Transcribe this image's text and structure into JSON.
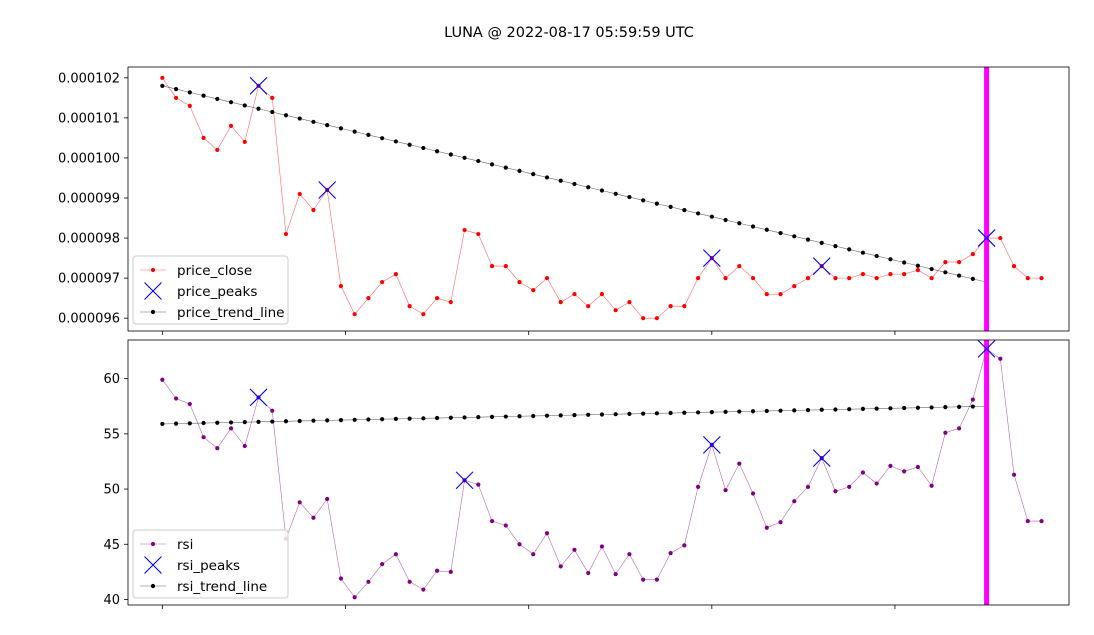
{
  "title": "LUNA @ 2022-08-17 05:59:59 UTC",
  "colors": {
    "price": "#ff0000",
    "rsi": "#800080",
    "trend": "#000000",
    "peaks": "#0000ff",
    "vline": "#ff00ff"
  },
  "chart_data": [
    {
      "type": "line",
      "x": [
        0,
        1,
        2,
        3,
        4,
        5,
        6,
        7,
        8,
        9,
        10,
        11,
        12,
        13,
        14,
        15,
        16,
        17,
        18,
        19,
        20,
        21,
        22,
        23,
        24,
        25,
        26,
        27,
        28,
        29,
        30,
        31,
        32,
        33,
        34,
        35,
        36,
        37,
        38,
        39,
        40,
        41,
        42,
        43,
        44,
        45,
        46,
        47,
        48,
        49,
        50,
        51,
        52,
        53,
        54,
        55,
        56,
        57,
        58,
        59,
        60,
        61,
        62,
        63,
        64
      ],
      "yticks": [
        "0.000096",
        "0.000097",
        "0.000098",
        "0.000099",
        "0.000100",
        "0.000101",
        "0.000102"
      ],
      "ylim": [
        9.568e-05,
        0.00010227
      ],
      "vline_x": 60,
      "legend": {
        "placement": "lower-left",
        "entries": [
          "price_close",
          "price_peaks",
          "price_trend_line"
        ]
      },
      "series": [
        {
          "name": "price_close",
          "values": [
            0.000102,
            0.0001015,
            0.0001013,
            0.0001005,
            0.0001002,
            0.0001008,
            0.0001004,
            0.0001018,
            0.0001015,
            9.81e-05,
            9.91e-05,
            9.87e-05,
            9.92e-05,
            9.68e-05,
            9.61e-05,
            9.65e-05,
            9.69e-05,
            9.71e-05,
            9.63e-05,
            9.61e-05,
            9.65e-05,
            9.64e-05,
            9.82e-05,
            9.81e-05,
            9.73e-05,
            9.73e-05,
            9.69e-05,
            9.67e-05,
            9.7e-05,
            9.64e-05,
            9.66e-05,
            9.63e-05,
            9.66e-05,
            9.62e-05,
            9.64e-05,
            9.6e-05,
            9.6e-05,
            9.63e-05,
            9.63e-05,
            9.7e-05,
            9.75e-05,
            9.7e-05,
            9.73e-05,
            9.7e-05,
            9.66e-05,
            9.66e-05,
            9.68e-05,
            9.7e-05,
            9.73e-05,
            9.7e-05,
            9.7e-05,
            9.71e-05,
            9.7e-05,
            9.71e-05,
            9.71e-05,
            9.72e-05,
            9.7e-05,
            9.74e-05,
            9.74e-05,
            9.76e-05,
            9.8e-05,
            9.8e-05,
            9.73e-05,
            9.7e-05,
            9.7e-05
          ]
        },
        {
          "name": "price_peaks",
          "points": [
            [
              7,
              0.0001018
            ],
            [
              12,
              9.92e-05
            ],
            [
              40,
              9.75e-05
            ],
            [
              48,
              9.73e-05
            ],
            [
              60,
              9.8e-05
            ]
          ]
        },
        {
          "name": "price_trend_line",
          "start": [
            0,
            0.0001018
          ],
          "end": [
            60,
            9.69e-05
          ]
        }
      ]
    },
    {
      "type": "line",
      "x": [
        0,
        1,
        2,
        3,
        4,
        5,
        6,
        7,
        8,
        9,
        10,
        11,
        12,
        13,
        14,
        15,
        16,
        17,
        18,
        19,
        20,
        21,
        22,
        23,
        24,
        25,
        26,
        27,
        28,
        29,
        30,
        31,
        32,
        33,
        34,
        35,
        36,
        37,
        38,
        39,
        40,
        41,
        42,
        43,
        44,
        45,
        46,
        47,
        48,
        49,
        50,
        51,
        52,
        53,
        54,
        55,
        56,
        57,
        58,
        59,
        60,
        61,
        62,
        63,
        64
      ],
      "yticks": [
        "40",
        "45",
        "50",
        "55",
        "60"
      ],
      "ylim": [
        39.5,
        63.5
      ],
      "vline_x": 60,
      "legend": {
        "placement": "lower-left",
        "entries": [
          "rsi",
          "rsi_peaks",
          "rsi_trend_line"
        ]
      },
      "series": [
        {
          "name": "rsi",
          "values": [
            59.9,
            58.2,
            57.7,
            54.7,
            53.7,
            55.5,
            53.9,
            58.3,
            57.1,
            45.5,
            48.8,
            47.4,
            49.1,
            41.9,
            40.2,
            41.6,
            43.2,
            44.1,
            41.6,
            40.9,
            42.6,
            42.5,
            50.8,
            50.4,
            47.1,
            46.7,
            45.0,
            44.1,
            46.0,
            43.0,
            44.5,
            42.4,
            44.8,
            42.3,
            44.1,
            41.8,
            41.8,
            44.2,
            44.9,
            50.2,
            54.0,
            49.9,
            52.3,
            49.6,
            46.5,
            47.0,
            48.9,
            50.2,
            52.8,
            49.8,
            50.2,
            51.5,
            50.5,
            52.1,
            51.6,
            52.0,
            50.3,
            55.1,
            55.5,
            58.1,
            62.7,
            61.8,
            51.3,
            47.1,
            47.1
          ]
        },
        {
          "name": "rsi_peaks",
          "points": [
            [
              7,
              58.3
            ],
            [
              22,
              50.8
            ],
            [
              40,
              54.0
            ],
            [
              48,
              52.8
            ],
            [
              60,
              62.7
            ]
          ]
        },
        {
          "name": "rsi_trend_line",
          "start": [
            0,
            55.9
          ],
          "end": [
            60,
            57.5
          ]
        }
      ]
    }
  ]
}
